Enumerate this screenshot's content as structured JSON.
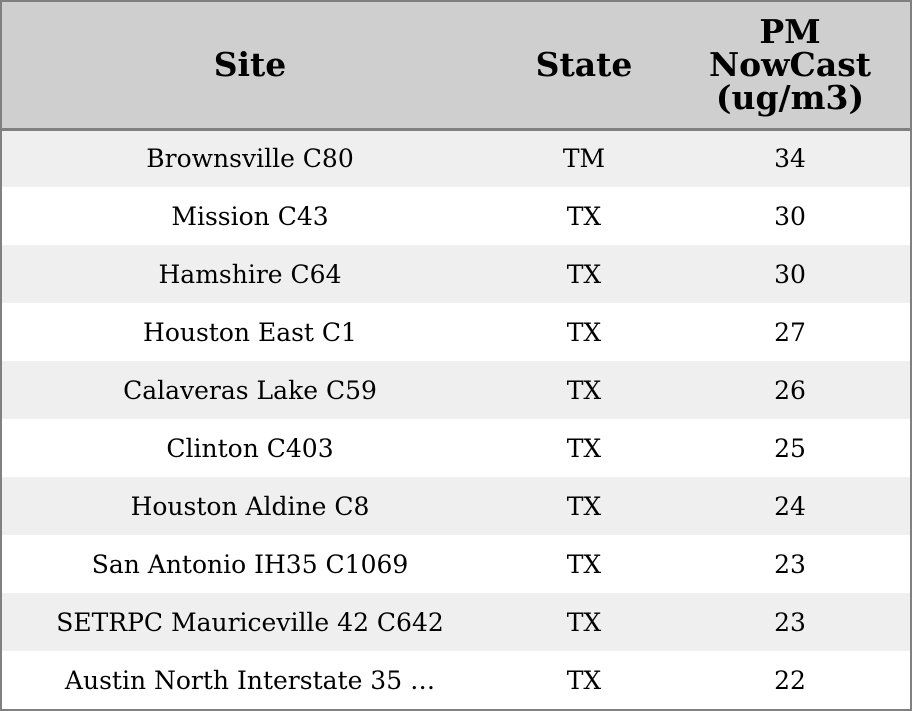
{
  "header": {
    "site": "Site",
    "state": "State",
    "pm_line1": "PM",
    "pm_line2": "NowCast",
    "pm_line3": "(ug/m3)"
  },
  "rows": [
    {
      "site": "Brownsville C80",
      "state": "TM",
      "pm": "34"
    },
    {
      "site": "Mission C43",
      "state": "TX",
      "pm": "30"
    },
    {
      "site": "Hamshire C64",
      "state": "TX",
      "pm": "30"
    },
    {
      "site": "Houston East C1",
      "state": "TX",
      "pm": "27"
    },
    {
      "site": "Calaveras Lake C59",
      "state": "TX",
      "pm": "26"
    },
    {
      "site": "Clinton C403",
      "state": "TX",
      "pm": "25"
    },
    {
      "site": "Houston Aldine C8",
      "state": "TX",
      "pm": "24"
    },
    {
      "site": "San Antonio IH35 C1069",
      "state": "TX",
      "pm": "23"
    },
    {
      "site": "SETRPC Mauriceville 42 C642",
      "state": "TX",
      "pm": "23"
    },
    {
      "site": "Austin North Interstate 35 …",
      "state": "TX",
      "pm": "22"
    }
  ],
  "colors": {
    "header_bg": "#cfcfcf",
    "row_alt_bg": "#efefef",
    "row_bg": "#ffffff",
    "border": "#808080"
  }
}
